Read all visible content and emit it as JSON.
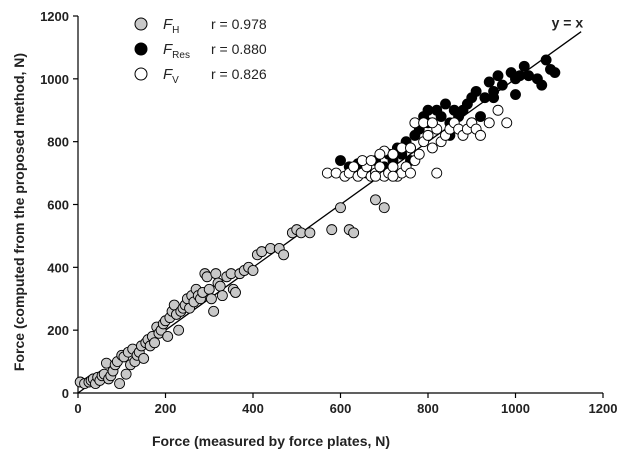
{
  "chart_data": {
    "type": "scatter",
    "title": "",
    "xlabel": "Force (measured by force plates, N)",
    "ylabel": "Force (computed from the proposed method, N)",
    "xlim": [
      0,
      1200
    ],
    "ylim": [
      0,
      1200
    ],
    "xticks": [
      0,
      200,
      400,
      600,
      800,
      1000,
      1200
    ],
    "yticks": [
      0,
      200,
      400,
      600,
      800,
      1000,
      1200
    ],
    "grid": false,
    "legend_position": "top-left",
    "identity_line": {
      "label": "y = x",
      "from": [
        0,
        0
      ],
      "to": [
        1150,
        1150
      ]
    },
    "series": [
      {
        "name": "F",
        "subscript": "H",
        "r_text": "r = 0.978",
        "marker": "circle",
        "fill": "#c8c8c8",
        "stroke": "#000000",
        "points": [
          [
            5,
            35
          ],
          [
            15,
            30
          ],
          [
            25,
            35
          ],
          [
            30,
            40
          ],
          [
            35,
            45
          ],
          [
            40,
            30
          ],
          [
            45,
            50
          ],
          [
            50,
            40
          ],
          [
            55,
            55
          ],
          [
            60,
            60
          ],
          [
            65,
            95
          ],
          [
            70,
            45
          ],
          [
            75,
            55
          ],
          [
            80,
            70
          ],
          [
            85,
            90
          ],
          [
            90,
            100
          ],
          [
            95,
            30
          ],
          [
            100,
            120
          ],
          [
            105,
            115
          ],
          [
            110,
            60
          ],
          [
            115,
            130
          ],
          [
            120,
            90
          ],
          [
            125,
            140
          ],
          [
            130,
            100
          ],
          [
            135,
            120
          ],
          [
            140,
            130
          ],
          [
            145,
            150
          ],
          [
            150,
            110
          ],
          [
            155,
            160
          ],
          [
            160,
            170
          ],
          [
            165,
            150
          ],
          [
            170,
            180
          ],
          [
            175,
            160
          ],
          [
            180,
            210
          ],
          [
            185,
            190
          ],
          [
            190,
            200
          ],
          [
            195,
            220
          ],
          [
            200,
            230
          ],
          [
            205,
            180
          ],
          [
            210,
            240
          ],
          [
            215,
            260
          ],
          [
            220,
            280
          ],
          [
            225,
            250
          ],
          [
            230,
            200
          ],
          [
            235,
            260
          ],
          [
            240,
            270
          ],
          [
            245,
            280
          ],
          [
            250,
            300
          ],
          [
            255,
            270
          ],
          [
            260,
            310
          ],
          [
            265,
            290
          ],
          [
            270,
            330
          ],
          [
            275,
            310
          ],
          [
            280,
            300
          ],
          [
            285,
            320
          ],
          [
            290,
            380
          ],
          [
            295,
            370
          ],
          [
            300,
            330
          ],
          [
            305,
            300
          ],
          [
            310,
            260
          ],
          [
            315,
            380
          ],
          [
            320,
            350
          ],
          [
            325,
            340
          ],
          [
            330,
            310
          ],
          [
            340,
            370
          ],
          [
            350,
            380
          ],
          [
            355,
            330
          ],
          [
            360,
            320
          ],
          [
            370,
            380
          ],
          [
            380,
            390
          ],
          [
            390,
            400
          ],
          [
            400,
            390
          ],
          [
            410,
            440
          ],
          [
            420,
            450
          ],
          [
            440,
            460
          ],
          [
            460,
            460
          ],
          [
            470,
            440
          ],
          [
            490,
            510
          ],
          [
            500,
            520
          ],
          [
            510,
            510
          ],
          [
            530,
            510
          ],
          [
            580,
            520
          ],
          [
            600,
            590
          ],
          [
            620,
            520
          ],
          [
            630,
            510
          ],
          [
            680,
            615
          ],
          [
            700,
            590
          ]
        ]
      },
      {
        "name": "F",
        "subscript": "Res",
        "r_text": "r = 0.880",
        "marker": "circle",
        "fill": "#000000",
        "stroke": "#000000",
        "points": [
          [
            600,
            740
          ],
          [
            620,
            720
          ],
          [
            640,
            730
          ],
          [
            660,
            700
          ],
          [
            680,
            740
          ],
          [
            700,
            720
          ],
          [
            710,
            760
          ],
          [
            720,
            740
          ],
          [
            730,
            780
          ],
          [
            740,
            760
          ],
          [
            750,
            800
          ],
          [
            760,
            780
          ],
          [
            770,
            820
          ],
          [
            780,
            840
          ],
          [
            790,
            880
          ],
          [
            800,
            900
          ],
          [
            810,
            860
          ],
          [
            820,
            900
          ],
          [
            830,
            880
          ],
          [
            840,
            920
          ],
          [
            850,
            860
          ],
          [
            860,
            900
          ],
          [
            870,
            880
          ],
          [
            880,
            900
          ],
          [
            890,
            920
          ],
          [
            900,
            940
          ],
          [
            910,
            960
          ],
          [
            920,
            880
          ],
          [
            930,
            940
          ],
          [
            940,
            990
          ],
          [
            950,
            960
          ],
          [
            960,
            1010
          ],
          [
            970,
            980
          ],
          [
            990,
            1020
          ],
          [
            1000,
            1000
          ],
          [
            1010,
            1010
          ],
          [
            1020,
            1040
          ],
          [
            1030,
            1010
          ],
          [
            1050,
            1000
          ],
          [
            1060,
            980
          ],
          [
            1070,
            1060
          ],
          [
            1080,
            1030
          ],
          [
            1090,
            1020
          ],
          [
            700,
            700
          ],
          [
            760,
            740
          ],
          [
            800,
            860
          ],
          [
            850,
            820
          ],
          [
            900,
            860
          ],
          [
            950,
            940
          ],
          [
            1000,
            950
          ]
        ]
      },
      {
        "name": "F",
        "subscript": "V",
        "r_text": "r = 0.826",
        "marker": "circle",
        "fill": "#ffffff",
        "stroke": "#000000",
        "points": [
          [
            570,
            700
          ],
          [
            590,
            700
          ],
          [
            610,
            690
          ],
          [
            620,
            700
          ],
          [
            630,
            720
          ],
          [
            640,
            690
          ],
          [
            650,
            700
          ],
          [
            660,
            720
          ],
          [
            670,
            690
          ],
          [
            680,
            700
          ],
          [
            690,
            720
          ],
          [
            700,
            690
          ],
          [
            710,
            700
          ],
          [
            720,
            720
          ],
          [
            730,
            690
          ],
          [
            740,
            700
          ],
          [
            750,
            720
          ],
          [
            760,
            700
          ],
          [
            770,
            740
          ],
          [
            780,
            760
          ],
          [
            790,
            800
          ],
          [
            800,
            820
          ],
          [
            810,
            780
          ],
          [
            820,
            840
          ],
          [
            830,
            800
          ],
          [
            840,
            820
          ],
          [
            850,
            840
          ],
          [
            860,
            860
          ],
          [
            870,
            840
          ],
          [
            880,
            820
          ],
          [
            890,
            840
          ],
          [
            900,
            860
          ],
          [
            910,
            840
          ],
          [
            920,
            820
          ],
          [
            940,
            860
          ],
          [
            960,
            900
          ],
          [
            980,
            860
          ],
          [
            770,
            860
          ],
          [
            790,
            860
          ],
          [
            810,
            860
          ],
          [
            700,
            770
          ],
          [
            720,
            760
          ],
          [
            740,
            780
          ],
          [
            760,
            780
          ],
          [
            680,
            690
          ],
          [
            720,
            690
          ],
          [
            820,
            700
          ],
          [
            650,
            740
          ],
          [
            670,
            740
          ],
          [
            690,
            760
          ]
        ]
      }
    ]
  }
}
